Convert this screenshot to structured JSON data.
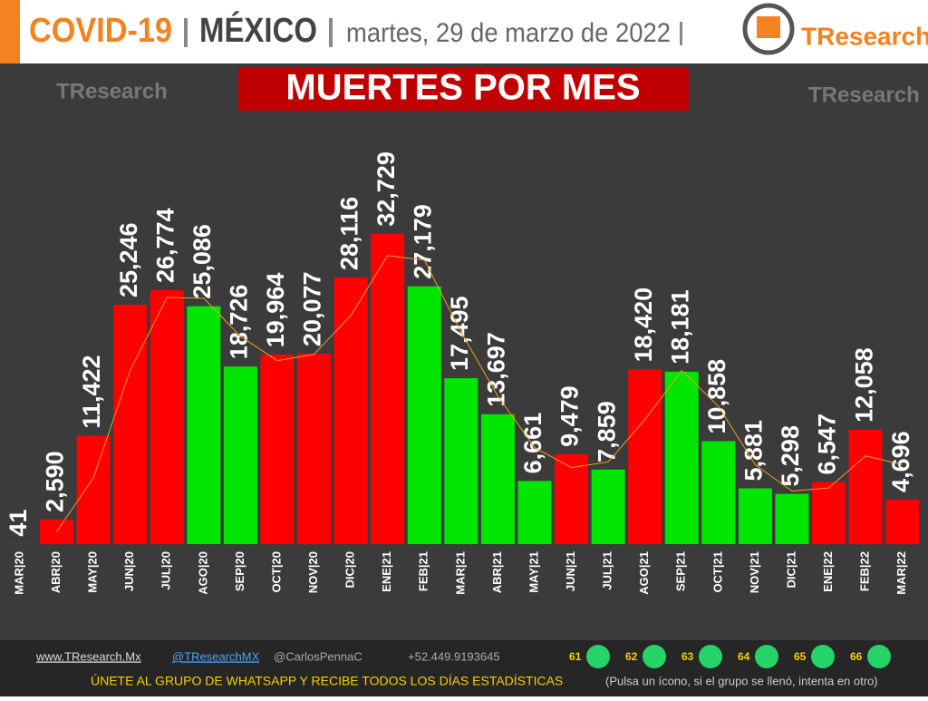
{
  "header": {
    "topic": "COVID-19",
    "country": "MÉXICO",
    "date": "martes, 29 de marzo de 2022",
    "logo": "TResearch"
  },
  "chart_data": {
    "type": "bar",
    "title": "MUERTES POR MES",
    "categories": [
      "MAR|20",
      "ABR|20",
      "MAY|20",
      "JUN|20",
      "JUL|20",
      "AGO|20",
      "SEP|20",
      "OCT|20",
      "NOV|20",
      "DIC|20",
      "ENE|21",
      "FEB|21",
      "MAR|21",
      "ABR|21",
      "MAY|21",
      "JUN|21",
      "JUL|21",
      "AGO|21",
      "SEP|21",
      "OCT|21",
      "NOV|21",
      "DIC|21",
      "ENE|22",
      "FEB|22",
      "MAR|22"
    ],
    "values": [
      41,
      2590,
      11422,
      25246,
      26774,
      25086,
      18726,
      19964,
      20077,
      28116,
      32729,
      27179,
      17495,
      13697,
      6661,
      9479,
      7859,
      18420,
      18181,
      10858,
      5881,
      5298,
      6547,
      12058,
      4696
    ],
    "value_labels": [
      "41",
      "2,590",
      "11,422",
      "25,246",
      "26,774",
      "25,086",
      "18,726",
      "19,964",
      "20,077",
      "28,116",
      "32,729",
      "27,179",
      "17,495",
      "13,697",
      "6,661",
      "9,479",
      "7,859",
      "18,420",
      "18,181",
      "10,858",
      "5,881",
      "5,298",
      "6,547",
      "12,058",
      "4,696"
    ],
    "colors": [
      "#ff0000",
      "#ff0000",
      "#ff0000",
      "#ff0000",
      "#ff0000",
      "#00e600",
      "#00e600",
      "#ff0000",
      "#ff0000",
      "#ff0000",
      "#ff0000",
      "#00e600",
      "#00e600",
      "#00e600",
      "#00e600",
      "#ff0000",
      "#00e600",
      "#ff0000",
      "#00e600",
      "#00e600",
      "#00e600",
      "#00e600",
      "#ff0000",
      "#ff0000",
      "#ff0000"
    ],
    "line_values": [
      null,
      1316,
      7006,
      18334,
      26010,
      25930,
      21906,
      19345,
      20021,
      24097,
      30423,
      29954,
      22337,
      15596,
      10179,
      8070,
      8669,
      13140,
      18301,
      14520,
      8370,
      5590,
      5923,
      9303,
      8377
    ],
    "line_color": "#f0a020",
    "ylim": [
      0,
      35000
    ]
  },
  "footer": {
    "web": "www.TResearch.Mx",
    "twitter": "@TResearchMX",
    "author": "@CarlosPennaC",
    "phone": "+52.449.9193645",
    "groups": [
      "61",
      "62",
      "63",
      "64",
      "65",
      "66"
    ],
    "cta": "ÚNETE AL GRUPO DE WHATSAPP Y RECIBE TODOS LOS DÍAS ESTADÍSTICAS",
    "note": "(Pulsa un ícono, si el grupo se llenó, intenta en otro)"
  }
}
